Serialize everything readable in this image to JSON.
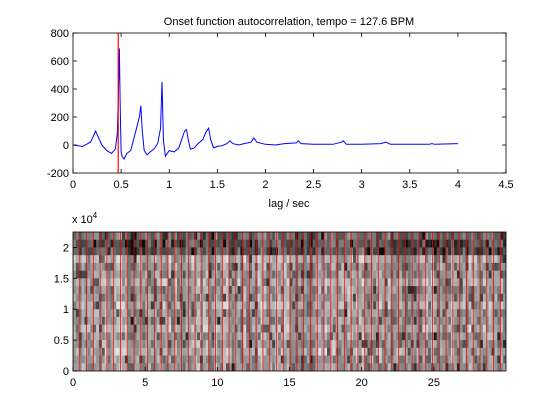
{
  "chart_data": [
    {
      "type": "line",
      "title": "Onset function autocorrelation, tempo = 127.6 BPM",
      "xlabel": "lag / sec",
      "ylabel": "",
      "xlim": [
        0,
        4.5
      ],
      "ylim": [
        -200,
        800
      ],
      "xticks": [
        "0",
        "0.5",
        "1",
        "1.5",
        "2",
        "2.5",
        "3",
        "3.5",
        "4",
        "4.5"
      ],
      "yticks": [
        "-200",
        "0",
        "200",
        "400",
        "600",
        "800"
      ],
      "grid": false,
      "series": [
        {
          "color": "#0000ff",
          "x": [
            0.0,
            0.1,
            0.18,
            0.21,
            0.235,
            0.26,
            0.3,
            0.35,
            0.4,
            0.44,
            0.46,
            0.47,
            0.482,
            0.49,
            0.5,
            0.51,
            0.53,
            0.56,
            0.6,
            0.63,
            0.66,
            0.69,
            0.705,
            0.72,
            0.74,
            0.77,
            0.8,
            0.84,
            0.88,
            0.91,
            0.925,
            0.94,
            0.96,
            1.0,
            1.05,
            1.1,
            1.13,
            1.16,
            1.18,
            1.2,
            1.22,
            1.26,
            1.3,
            1.35,
            1.38,
            1.41,
            1.43,
            1.46,
            1.5,
            1.55,
            1.6,
            1.63,
            1.66,
            1.72,
            1.78,
            1.85,
            1.88,
            1.91,
            2.0,
            2.1,
            2.2,
            2.32,
            2.34,
            2.37,
            2.5,
            2.7,
            2.79,
            2.81,
            2.84,
            3.0,
            3.2,
            3.25,
            3.27,
            3.3,
            3.5,
            3.7,
            3.73,
            3.76,
            4.0
          ],
          "y": [
            0,
            -10,
            20,
            60,
            100,
            60,
            0,
            -40,
            -60,
            -30,
            80,
            300,
            690,
            300,
            -50,
            -80,
            -100,
            -60,
            -40,
            40,
            120,
            200,
            280,
            100,
            -40,
            -70,
            -50,
            -30,
            10,
            120,
            450,
            30,
            -80,
            -40,
            -50,
            -20,
            40,
            100,
            110,
            30,
            -30,
            -20,
            10,
            40,
            90,
            120,
            40,
            -20,
            -10,
            -5,
            10,
            30,
            10,
            0,
            10,
            20,
            50,
            20,
            5,
            0,
            10,
            15,
            30,
            10,
            5,
            5,
            20,
            30,
            5,
            5,
            10,
            20,
            15,
            5,
            5,
            5,
            10,
            5,
            10
          ]
        }
      ],
      "annotations": [
        {
          "type": "vline",
          "x": 0.47,
          "color": "#ff0000"
        }
      ]
    },
    {
      "type": "heatmap",
      "title": "",
      "xlabel": "",
      "ylabel": "",
      "xlim": [
        0,
        30
      ],
      "ylim": [
        0,
        22500
      ],
      "xticks": [
        "0",
        "5",
        "10",
        "15",
        "20",
        "25"
      ],
      "yticks": [
        "0",
        "0.5",
        "1",
        "1.5",
        "2"
      ],
      "yexponent_base": "x 10",
      "yexponent_power": "4",
      "colormap": "gray",
      "overlay_vlines": {
        "color": "#ff0000",
        "period": 0.47,
        "start": 0.0,
        "end": 30
      }
    }
  ]
}
